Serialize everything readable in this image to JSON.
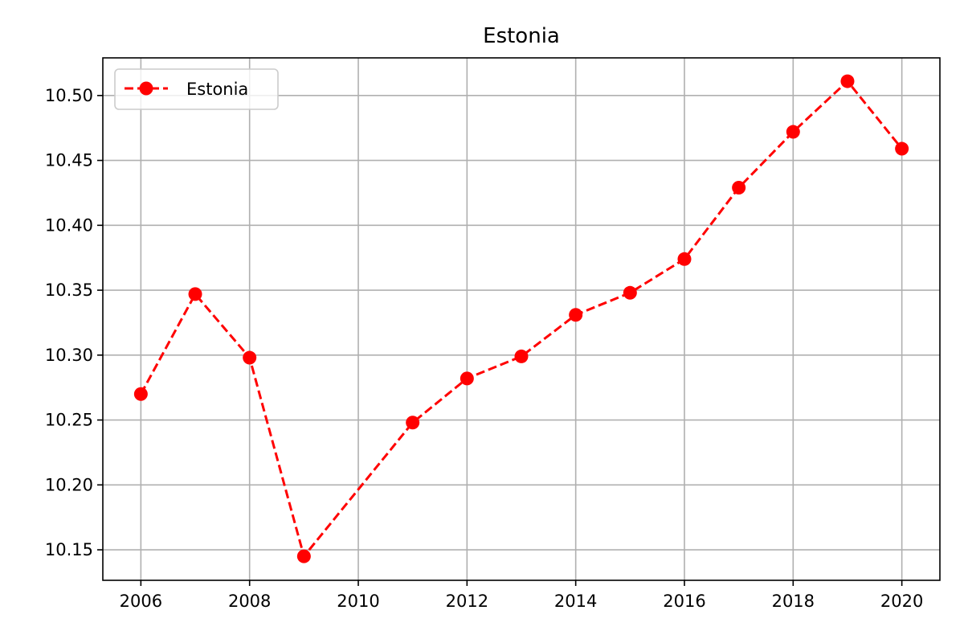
{
  "chart_data": {
    "type": "line",
    "title": "Estonia",
    "xlabel": "",
    "ylabel": "",
    "x": [
      2006,
      2007,
      2008,
      2009,
      2011,
      2012,
      2013,
      2014,
      2015,
      2016,
      2017,
      2018,
      2019,
      2020
    ],
    "series": [
      {
        "name": "Estonia",
        "values": [
          10.27,
          10.347,
          10.298,
          10.145,
          10.248,
          10.282,
          10.299,
          10.331,
          10.348,
          10.374,
          10.429,
          10.472,
          10.511,
          10.459
        ],
        "color": "#ff0000",
        "line_style": "dashed",
        "marker": "circle"
      }
    ],
    "xlim": [
      2005.3,
      2020.7
    ],
    "ylim": [
      10.1265,
      10.529
    ],
    "xticks": [
      2006,
      2008,
      2010,
      2012,
      2014,
      2016,
      2018,
      2020
    ],
    "xtick_labels": [
      "2006",
      "2008",
      "2010",
      "2012",
      "2014",
      "2016",
      "2018",
      "2020"
    ],
    "yticks": [
      10.15,
      10.2,
      10.25,
      10.3,
      10.35,
      10.4,
      10.45,
      10.5
    ],
    "ytick_labels": [
      "10.15",
      "10.20",
      "10.25",
      "10.30",
      "10.35",
      "10.40",
      "10.45",
      "10.50"
    ],
    "grid": true,
    "legend_position": "upper-left"
  }
}
